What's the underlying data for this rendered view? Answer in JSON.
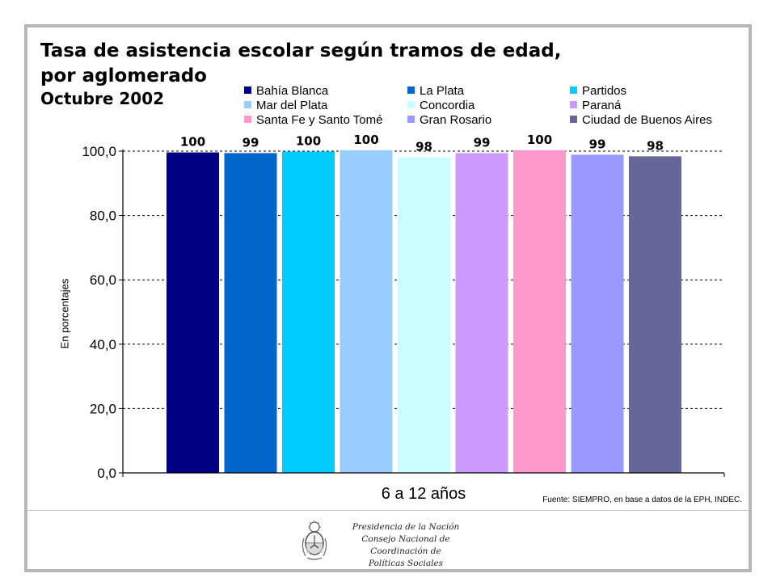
{
  "title_line1": "Tasa de asistencia escolar según tramos de edad,",
  "title_line2": "por aglomerado",
  "subtitle": "Octubre 2002",
  "source": "Fuente: SIEMPRO, en base a datos de la EPH, INDEC.",
  "footer": {
    "line1": "Presidencia de la Nación",
    "line2": "Consejo Nacional de Coordinación de",
    "line3": "Políticas Sociales"
  },
  "chart_data": {
    "type": "bar",
    "title": "Tasa de asistencia escolar según tramos de edad, por aglomerado",
    "subtitle": "Octubre 2002",
    "categories": [
      "6 a 12 años"
    ],
    "xlabel": "6 a 12 años",
    "ylabel": "En porcentajes",
    "ylim": [
      0,
      100
    ],
    "yticks": [
      "0,0",
      "20,0",
      "40,0",
      "60,0",
      "80,0",
      "100,0"
    ],
    "grid": true,
    "legend_position": "top",
    "series": [
      {
        "name": "Bahía Blanca",
        "values": [
          99.6
        ],
        "label": "100",
        "color": "#000080"
      },
      {
        "name": "La Plata",
        "values": [
          99.4
        ],
        "label": "99",
        "color": "#0066cc"
      },
      {
        "name": "Partidos",
        "values": [
          99.9
        ],
        "label": "100",
        "color": "#00ccff"
      },
      {
        "name": "Mar del Plata",
        "values": [
          100.3
        ],
        "label": "100",
        "color": "#99ccff"
      },
      {
        "name": "Concordia",
        "values": [
          98.1
        ],
        "label": "98",
        "color": "#ccffff"
      },
      {
        "name": "Paraná",
        "values": [
          99.4
        ],
        "label": "99",
        "color": "#cc99ff"
      },
      {
        "name": "Santa Fe y Santo Tomé",
        "values": [
          100.3
        ],
        "label": "100",
        "color": "#ff99cc"
      },
      {
        "name": "Gran Rosario",
        "values": [
          98.9
        ],
        "label": "99",
        "color": "#9999ff"
      },
      {
        "name": "Ciudad de Buenos Aires",
        "values": [
          98.4
        ],
        "label": "98",
        "color": "#666699"
      }
    ]
  }
}
